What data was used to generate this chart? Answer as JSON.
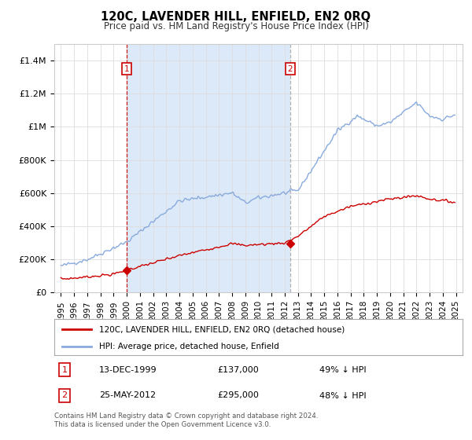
{
  "title": "120C, LAVENDER HILL, ENFIELD, EN2 0RQ",
  "subtitle": "Price paid vs. HM Land Registry's House Price Index (HPI)",
  "background_color": "#ffffff",
  "plot_bg_color": "#ffffff",
  "shaded_color": "#dce9f8",
  "xlabel": "",
  "ylabel": "",
  "ylim": [
    0,
    1500000
  ],
  "yticks": [
    0,
    200000,
    400000,
    600000,
    800000,
    1000000,
    1200000,
    1400000
  ],
  "ytick_labels": [
    "£0",
    "£200K",
    "£400K",
    "£600K",
    "£800K",
    "£1M",
    "£1.2M",
    "£1.4M"
  ],
  "red_line_label": "120C, LAVENDER HILL, ENFIELD, EN2 0RQ (detached house)",
  "blue_line_label": "HPI: Average price, detached house, Enfield",
  "sale1_date": "13-DEC-1999",
  "sale1_price": 137000,
  "sale1_note": "49% ↓ HPI",
  "sale1_year": 2000.0,
  "sale2_date": "25-MAY-2012",
  "sale2_price": 295000,
  "sale2_note": "48% ↓ HPI",
  "sale2_year": 2012.42,
  "footer": "Contains HM Land Registry data © Crown copyright and database right 2024.\nThis data is licensed under the Open Government Licence v3.0.",
  "red_color": "#cc0000",
  "blue_color": "#88aadd",
  "dashed1_color": "#cc0000",
  "dashed2_color": "#aaaaaa",
  "grid_color": "#dddddd",
  "label_box_color": "#cc0000"
}
